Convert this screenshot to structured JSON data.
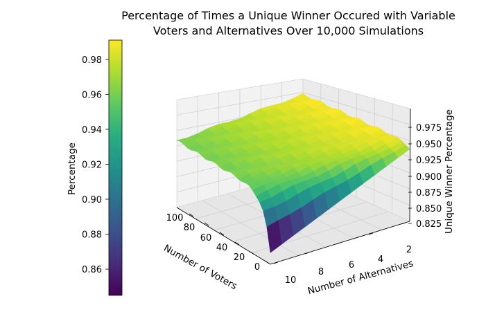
{
  "chart_data": {
    "type": "surface3d",
    "title_lines": [
      "Percentage of Times a Unique Winner Occured with Variable",
      "Voters and Alternatives Over 10,000 Simulations"
    ],
    "xlabel": "Number of Voters",
    "ylabel": "Number of Alternatives",
    "zlabel": "Unique Winner Percentage",
    "colorbar_label": "Percentage",
    "colormap": "viridis",
    "x_ticks": [
      "100",
      "80",
      "60",
      "40",
      "20",
      "0"
    ],
    "y_ticks": [
      "2",
      "4",
      "6",
      "8",
      "10"
    ],
    "z_ticks": [
      "0.825",
      "0.850",
      "0.875",
      "0.900",
      "0.925",
      "0.950",
      "0.975"
    ],
    "colorbar_ticks": [
      "0.98",
      "0.96",
      "0.94",
      "0.92",
      "0.90",
      "0.88",
      "0.86"
    ],
    "colorbar_range": [
      0.845,
      0.991
    ],
    "x_range": [
      1,
      100
    ],
    "y_range": [
      2,
      10
    ],
    "surface_points": [
      {
        "voters": 1,
        "alternatives": 2,
        "percentage": 0.975
      },
      {
        "voters": 1,
        "alternatives": 10,
        "percentage": 0.82
      },
      {
        "voters": 100,
        "alternatives": 2,
        "percentage": 0.991
      },
      {
        "voters": 100,
        "alternatives": 10,
        "percentage": 0.96
      }
    ],
    "grid": true
  }
}
